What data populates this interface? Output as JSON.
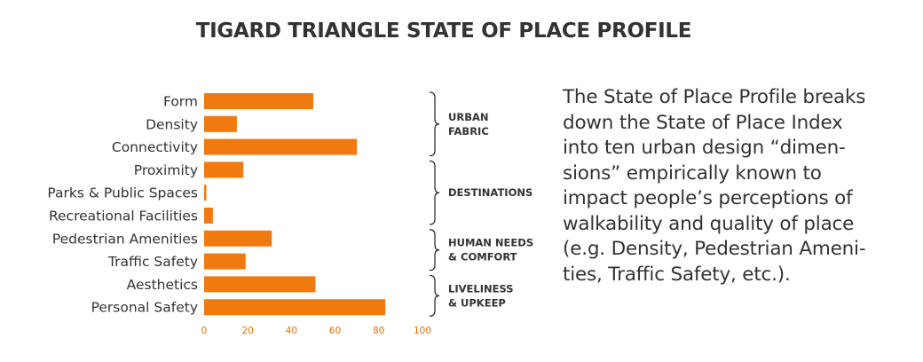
{
  "chart_data": {
    "type": "bar",
    "orientation": "horizontal",
    "title": "TIGARD TRIANGLE STATE OF PLACE PROFILE",
    "categories": [
      "Form",
      "Density",
      "Connectivity",
      "Proximity",
      "Parks & Public Spaces",
      "Recreational Facilities",
      "Pedestrian Amenities",
      "Traffic Safety",
      "Aesthetics",
      "Personal Safety"
    ],
    "values": [
      50,
      15,
      70,
      18,
      1,
      4,
      31,
      19,
      51,
      83
    ],
    "xlim": [
      0,
      100
    ],
    "xticks": [
      "0",
      "20",
      "40",
      "60",
      "80",
      "100"
    ],
    "bar_color": "#f07a10",
    "tick_color": "#e86f0c",
    "groups": [
      {
        "lines": [
          "URBAN",
          "FABRIC"
        ],
        "start": 0,
        "end": 2
      },
      {
        "lines": [
          "DESTINATIONS"
        ],
        "start": 3,
        "end": 5
      },
      {
        "lines": [
          "HUMAN NEEDS",
          "& COMFORT"
        ],
        "start": 6,
        "end": 7
      },
      {
        "lines": [
          "LIVELINESS",
          "& UPKEEP"
        ],
        "start": 8,
        "end": 9
      }
    ]
  },
  "description": "The State of Place Profile breaks down the State of Place Index into ten urban design “dimen-sions” empirically known to impact people’s perceptions of walkability and quality of place (e.g. Density, Pedestrian Ameni-ties, Traffic Safety, etc.).",
  "description_lines": [
    "The State of Place Profile breaks",
    "down the State of Place Index",
    "into ten urban design “dimen-",
    "sions” empirically known to",
    "impact people’s perceptions of",
    "walkability and quality of place",
    "(e.g. Density, Pedestrian Ameni-",
    "ties, Traffic Safety, etc.)."
  ]
}
